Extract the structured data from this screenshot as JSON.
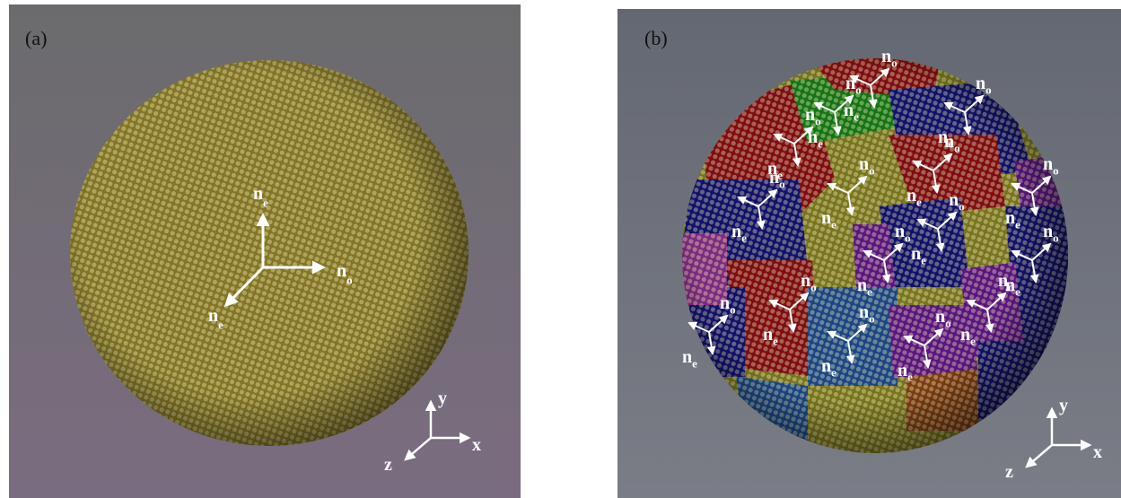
{
  "panel_a": {
    "label": "(a)",
    "directors": [
      {
        "n": "n",
        "sub": "e"
      },
      {
        "n": "n",
        "sub": "o"
      },
      {
        "n": "n",
        "sub": "e"
      }
    ],
    "axes": {
      "y": "y",
      "x": "x",
      "z": "z"
    }
  },
  "panel_b": {
    "label": "(b)",
    "triads": [
      {
        "o": {
          "n": "n",
          "sub": "o"
        },
        "e": {
          "n": "n",
          "sub": "e"
        }
      },
      {
        "o": {
          "n": "n",
          "sub": "o"
        },
        "e": {
          "n": "n",
          "sub": "e"
        }
      },
      {
        "o": {
          "n": "n",
          "sub": "o"
        },
        "e": {
          "n": "n",
          "sub": "e"
        }
      },
      {
        "o": {
          "n": "n",
          "sub": "o"
        },
        "e": {
          "n": "n",
          "sub": "e"
        }
      },
      {
        "o": {
          "n": "n",
          "sub": "o"
        },
        "e": {
          "n": "n",
          "sub": "e"
        }
      },
      {
        "o": {
          "n": "n",
          "sub": "o"
        },
        "e": {
          "n": "n",
          "sub": "e"
        }
      },
      {
        "o": {
          "n": "n",
          "sub": "o"
        },
        "e": {
          "n": "n",
          "sub": "e"
        }
      },
      {
        "o": {
          "n": "n",
          "sub": "o"
        },
        "e": {
          "n": "n",
          "sub": "e"
        }
      },
      {
        "o": {
          "n": "n",
          "sub": "o"
        },
        "e": {
          "n": "n",
          "sub": "e"
        }
      },
      {
        "o": {
          "n": "n",
          "sub": "o"
        },
        "e": {
          "n": "n",
          "sub": "e"
        }
      },
      {
        "o": {
          "n": "n",
          "sub": "o"
        },
        "e": {
          "n": "n",
          "sub": "e"
        }
      },
      {
        "o": {
          "n": "n",
          "sub": "o"
        },
        "e": {
          "n": "n",
          "sub": "e"
        }
      },
      {
        "o": {
          "n": "n",
          "sub": "o"
        },
        "e": {
          "n": "n",
          "sub": "e"
        }
      },
      {
        "o": {
          "n": "n",
          "sub": "o"
        },
        "e": {
          "n": "n",
          "sub": "e"
        }
      },
      {
        "o": {
          "n": "n",
          "sub": "o"
        },
        "e": {
          "n": "n",
          "sub": "e"
        }
      },
      {
        "o": {
          "n": "n",
          "sub": "o"
        },
        "e": {
          "n": "n",
          "sub": "e"
        }
      }
    ],
    "axes": {
      "y": "y",
      "x": "x",
      "z": "z"
    }
  }
}
